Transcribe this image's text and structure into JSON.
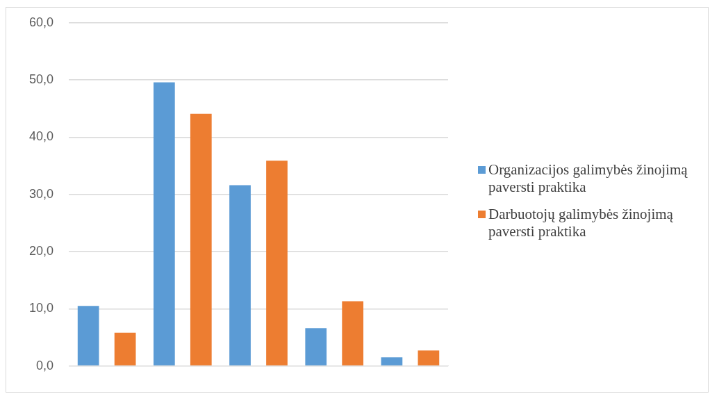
{
  "chart_data": {
    "type": "bar",
    "categories": [
      null,
      null,
      null,
      null,
      null
    ],
    "series": [
      {
        "name": "Organizacijos galimybės žinojimą paversti praktika",
        "color": "#5b9bd5",
        "values": [
          10.5,
          49.6,
          31.6,
          6.6,
          1.5
        ]
      },
      {
        "name": "Darbuotojų galimybės žinojimą paversti praktika",
        "color": "#ed7d31",
        "values": [
          5.8,
          44.1,
          35.9,
          11.3,
          2.7
        ]
      }
    ],
    "ylim": [
      0,
      60
    ],
    "yticks": [
      {
        "value": 0,
        "label": "0,0"
      },
      {
        "value": 10,
        "label": "10,0"
      },
      {
        "value": 20,
        "label": "20,0"
      },
      {
        "value": 30,
        "label": "30,0"
      },
      {
        "value": 40,
        "label": "40,0"
      },
      {
        "value": 50,
        "label": "50,0"
      },
      {
        "value": 60,
        "label": "60,0"
      }
    ],
    "grid": "y",
    "legend": "right"
  }
}
